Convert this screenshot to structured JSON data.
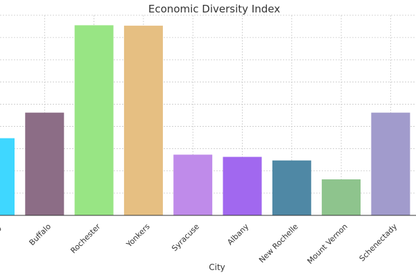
{
  "chart_data": {
    "type": "bar",
    "title": "Economic Diversity Index",
    "xlabel": "City",
    "ylabel": "",
    "categories": [
      "New York City",
      "Buffalo",
      "Rochester",
      "Yonkers",
      "Syracuse",
      "Albany",
      "New Rochelle",
      "Mount Vernon",
      "Schenectady"
    ],
    "values": [
      3.47,
      4.62,
      8.55,
      8.53,
      2.73,
      2.63,
      2.47,
      1.62,
      4.62
    ],
    "colors": [
      "#3fd7ff",
      "#8c6d86",
      "#98e584",
      "#e6bf82",
      "#bf8bea",
      "#a168ef",
      "#4f88a5",
      "#8ec48d",
      "#a19bcc"
    ],
    "ylim": [
      0,
      9
    ],
    "grid": true
  }
}
